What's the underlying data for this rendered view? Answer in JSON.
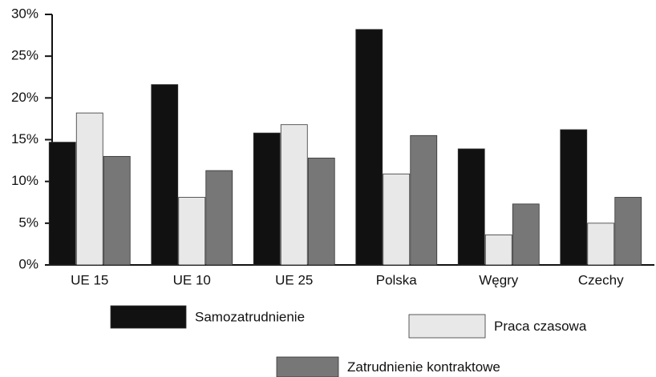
{
  "chart_data": {
    "type": "bar",
    "categories": [
      "UE 15",
      "UE 10",
      "UE 25",
      "Polska",
      "Węgry",
      "Czechy"
    ],
    "series": [
      {
        "name": "Samozatrudnienie",
        "color": "#111111",
        "values": [
          14.7,
          21.6,
          15.8,
          28.2,
          13.9,
          16.2
        ]
      },
      {
        "name": "Praca czasowa",
        "color": "#e8e8e8",
        "values": [
          18.2,
          8.1,
          16.8,
          10.9,
          3.6,
          5.0
        ]
      },
      {
        "name": "Zatrudnienie kontraktowe",
        "color": "#777777",
        "values": [
          13.0,
          11.3,
          12.8,
          15.5,
          7.3,
          8.1
        ]
      }
    ],
    "ylim": [
      0,
      30
    ],
    "yticks": [
      {
        "value": 0,
        "label": "0%"
      },
      {
        "value": 5,
        "label": "5%"
      },
      {
        "value": 10,
        "label": "10%"
      },
      {
        "value": 15,
        "label": "15%"
      },
      {
        "value": 20,
        "label": "20%"
      },
      {
        "value": 25,
        "label": "25%"
      },
      {
        "value": 30,
        "label": "30%"
      }
    ],
    "grid": false,
    "legend": "bottom"
  }
}
